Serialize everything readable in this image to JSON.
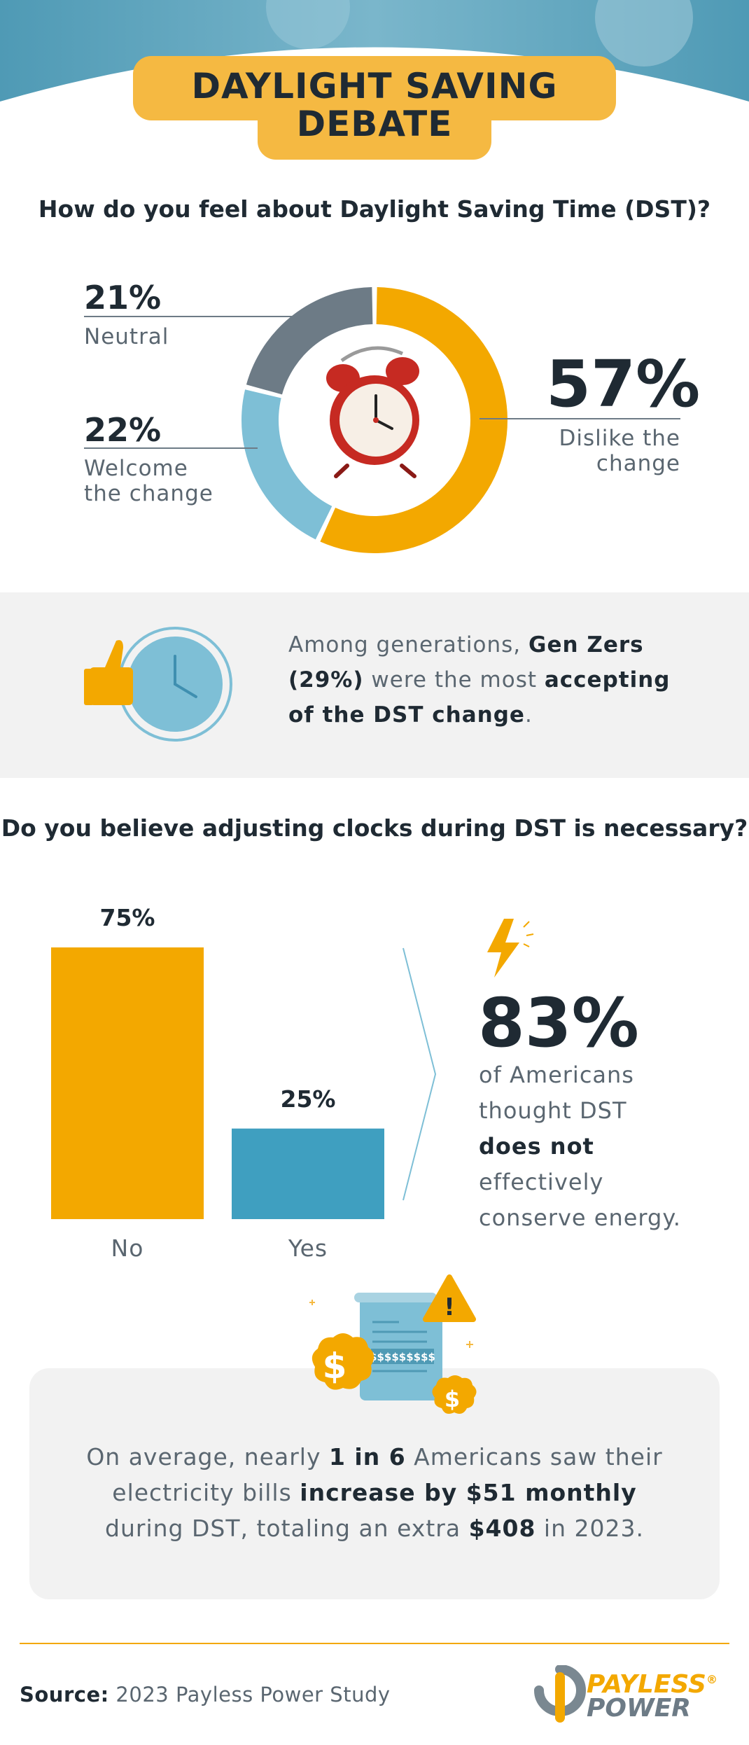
{
  "header": {
    "title_line1": "DAYLIGHT SAVING",
    "title_line2": "DEBATE"
  },
  "colors": {
    "accent": "#f3a800",
    "teal": "#3f9fc0",
    "light_blue": "#7ebfd6",
    "slate": "#6d7b86",
    "dark": "#1f2a33",
    "gray_text": "#5a6670"
  },
  "section1": {
    "question": "How do you feel about Daylight Saving Time (DST)?"
  },
  "section2": {
    "text_pre": "Among generations, ",
    "bold1": "Gen Zers (29%)",
    "text_mid": " were the most ",
    "bold2": "accepting of the DST change",
    "text_end": "."
  },
  "section3": {
    "question": "Do you believe adjusting clocks during DST is necessary?"
  },
  "stat83": {
    "value": "83%",
    "line1": "of Americans thought DST",
    "bold": "does not",
    "line2": " effectively conserve energy."
  },
  "bills": {
    "t1": "On average, nearly ",
    "b1": "1 in 6",
    "t2": " Americans saw their electricity bills ",
    "b2": "increase by $51 monthly",
    "t3": " during DST, totaling an extra ",
    "b3": "$408",
    "t4": " in 2023.",
    "receipt_text": "$$$$$$$$$",
    "warning": "!",
    "dollar": "$"
  },
  "footer": {
    "source_label": "Source:",
    "source_text": " 2023 Payless Power Study",
    "logo_line1": "PAYLESS",
    "logo_line2": "POWER",
    "logo_reg": "®"
  },
  "chart_data": [
    {
      "type": "pie",
      "title": "How do you feel about Daylight Saving Time (DST)?",
      "slices": [
        {
          "label": "Dislike the change",
          "value": 57,
          "display": "57%",
          "color": "#f3a800"
        },
        {
          "label": "Welcome the change",
          "value": 22,
          "display": "22%",
          "color": "#7ebfd6"
        },
        {
          "label": "Neutral",
          "value": 21,
          "display": "21%",
          "color": "#6d7b86"
        }
      ]
    },
    {
      "type": "bar",
      "title": "Do you believe adjusting clocks during DST is necessary?",
      "categories": [
        "No",
        "Yes"
      ],
      "values": [
        75,
        25
      ],
      "value_labels": [
        "75%",
        "25%"
      ],
      "colors": [
        "#f3a800",
        "#3f9fc0"
      ],
      "ylim": [
        0,
        75
      ]
    }
  ]
}
